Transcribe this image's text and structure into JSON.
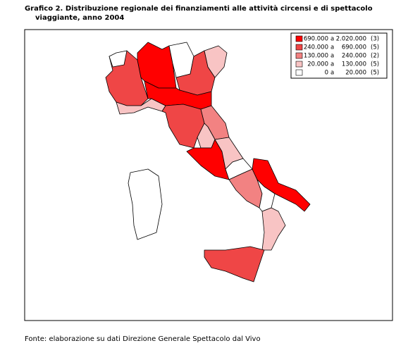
{
  "header": {
    "title_line1": "Grafico 2. Distribuzione regionale dei finanziamenti alle attività circensi e di spettacolo",
    "title_line2": "viaggiante, anno 2004"
  },
  "legend": {
    "items": [
      {
        "from": "690.000",
        "sep": "a",
        "to": "2.020.000",
        "count": "(3)",
        "color": "#ff0000"
      },
      {
        "from": "240.000",
        "sep": "a",
        "to": "690.000",
        "count": "(5)",
        "color": "#ef4646"
      },
      {
        "from": "130.000",
        "sep": "a",
        "to": "240.000",
        "count": "(2)",
        "color": "#f28282"
      },
      {
        "from": "20.000",
        "sep": "a",
        "to": "130.000",
        "count": "(5)",
        "color": "#f8c4c4"
      },
      {
        "from": "0",
        "sep": "a",
        "to": "20.000",
        "count": "(5)",
        "color": "#ffffff"
      }
    ]
  },
  "footer": {
    "source": "Fonte: elaborazione su dati Direzione Generale Spettacolo dal Vivo"
  }
}
